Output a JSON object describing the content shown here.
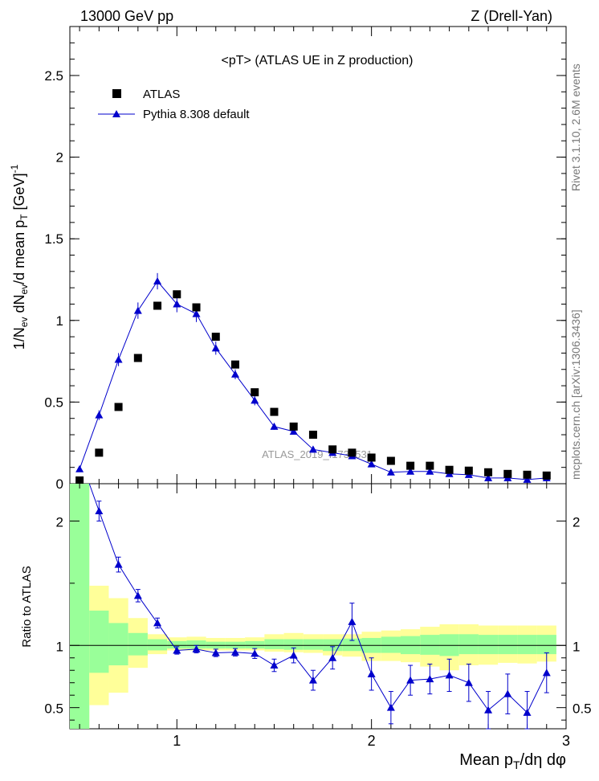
{
  "header": {
    "left": "13000 GeV pp",
    "right": "Z (Drell-Yan)"
  },
  "side_labels": {
    "rivet": "Rivet 3.1.10,  2.6M events",
    "mcplots": "mcplots.cern.ch [arXiv:1306.3436]"
  },
  "main_title": "<pT>  (ATLAS UE in Z production)",
  "watermark": "ATLAS_2019_I1736531",
  "legend": {
    "atlas": "ATLAS",
    "pythia": "Pythia 8.308 default"
  },
  "colors": {
    "mc": "#0000cc",
    "band_inner": "#99ff99",
    "band_outer": "#ffff99",
    "data": "#000000"
  },
  "chart_data": [
    {
      "type": "scatter",
      "title": "<pT>  (ATLAS UE in Z production)",
      "xlabel": "Mean p_T/dη dφ",
      "ylabel": "1/N_ev dN_ev/d mean p_T [GeV]^-1",
      "xlim": [
        0.45,
        3.0
      ],
      "ylim": [
        0,
        2.8
      ],
      "y_ticks": [
        "0",
        "0.5",
        "1",
        "1.5",
        "2",
        "2.5"
      ],
      "series": [
        {
          "name": "ATLAS",
          "x": [
            0.5,
            0.6,
            0.7,
            0.8,
            0.9,
            1.0,
            1.1,
            1.2,
            1.3,
            1.4,
            1.5,
            1.6,
            1.7,
            1.8,
            1.9,
            2.0,
            2.1,
            2.2,
            2.3,
            2.4,
            2.5,
            2.6,
            2.7,
            2.8,
            2.9
          ],
          "y": [
            0.02,
            0.19,
            0.47,
            0.77,
            1.09,
            1.16,
            1.08,
            0.9,
            0.73,
            0.56,
            0.44,
            0.35,
            0.3,
            0.21,
            0.19,
            0.16,
            0.14,
            0.11,
            0.11,
            0.085,
            0.08,
            0.07,
            0.06,
            0.055,
            0.05
          ]
        },
        {
          "name": "Pythia 8.308 default",
          "x": [
            0.5,
            0.6,
            0.7,
            0.8,
            0.9,
            1.0,
            1.1,
            1.2,
            1.3,
            1.4,
            1.5,
            1.6,
            1.7,
            1.8,
            1.9,
            2.0,
            2.1,
            2.2,
            2.3,
            2.4,
            2.5,
            2.6,
            2.7,
            2.8,
            2.9
          ],
          "y": [
            0.09,
            0.42,
            0.76,
            1.06,
            1.24,
            1.1,
            1.04,
            0.83,
            0.67,
            0.51,
            0.35,
            0.32,
            0.21,
            0.19,
            0.17,
            0.12,
            0.07,
            0.075,
            0.075,
            0.06,
            0.055,
            0.035,
            0.035,
            0.025,
            0.035
          ],
          "err": [
            0.01,
            0.03,
            0.04,
            0.05,
            0.05,
            0.05,
            0.05,
            0.04,
            0.03,
            0.03,
            0.02,
            0.02,
            0.02,
            0.02,
            0.02,
            0.01,
            0.01,
            0.01,
            0.01,
            0.01,
            0.01,
            0.005,
            0.005,
            0.005,
            0.005
          ]
        }
      ]
    },
    {
      "type": "line",
      "ylabel": "Ratio to ATLAS",
      "xlim": [
        0.45,
        3.0
      ],
      "ylim": [
        0.33,
        2.3
      ],
      "x_ticks": [
        "1",
        "2",
        "3"
      ],
      "y_ticks": [
        "0.5",
        "1",
        "2"
      ],
      "ratio_series": {
        "name": "Pythia 8.308 default",
        "x": [
          0.6,
          0.7,
          0.8,
          0.9,
          1.0,
          1.1,
          1.2,
          1.3,
          1.4,
          1.5,
          1.6,
          1.7,
          1.8,
          1.9,
          2.0,
          2.1,
          2.2,
          2.3,
          2.4,
          2.5,
          2.6,
          2.7,
          2.8,
          2.9
        ],
        "y": [
          2.08,
          1.65,
          1.4,
          1.18,
          0.96,
          0.97,
          0.94,
          0.945,
          0.935,
          0.84,
          0.92,
          0.72,
          0.9,
          1.19,
          0.77,
          0.5,
          0.72,
          0.73,
          0.76,
          0.7,
          0.48,
          0.61,
          0.46,
          0.78
        ],
        "err": [
          0.08,
          0.06,
          0.05,
          0.04,
          0.03,
          0.03,
          0.03,
          0.03,
          0.04,
          0.05,
          0.06,
          0.08,
          0.09,
          0.15,
          0.13,
          0.13,
          0.12,
          0.12,
          0.13,
          0.15,
          0.15,
          0.16,
          0.17,
          0.16
        ]
      },
      "bands": {
        "x_edges": [
          0.45,
          0.55,
          0.65,
          0.75,
          0.85,
          0.95,
          1.05,
          1.15,
          1.25,
          1.35,
          1.45,
          1.55,
          1.65,
          1.75,
          1.85,
          1.95,
          2.05,
          2.15,
          2.25,
          2.35,
          2.45,
          2.55,
          2.65,
          2.75,
          2.85,
          2.95
        ],
        "inner_lo": [
          0.3,
          0.78,
          0.84,
          0.92,
          0.96,
          0.975,
          0.975,
          0.975,
          0.975,
          0.975,
          0.97,
          0.965,
          0.965,
          0.955,
          0.955,
          0.94,
          0.94,
          0.93,
          0.925,
          0.915,
          0.93,
          0.93,
          0.93,
          0.93,
          0.93
        ],
        "inner_hi": [
          2.3,
          1.28,
          1.18,
          1.1,
          1.05,
          1.035,
          1.04,
          1.03,
          1.03,
          1.035,
          1.05,
          1.05,
          1.05,
          1.05,
          1.055,
          1.06,
          1.07,
          1.075,
          1.085,
          1.09,
          1.09,
          1.085,
          1.085,
          1.085,
          1.085
        ],
        "outer_lo": [
          0.3,
          0.52,
          0.62,
          0.82,
          0.93,
          0.96,
          0.96,
          0.96,
          0.96,
          0.96,
          0.95,
          0.945,
          0.94,
          0.92,
          0.91,
          0.875,
          0.875,
          0.865,
          0.83,
          0.8,
          0.84,
          0.845,
          0.86,
          0.855,
          0.87
        ],
        "outer_hi": [
          2.3,
          1.48,
          1.38,
          1.22,
          1.09,
          1.065,
          1.07,
          1.06,
          1.06,
          1.065,
          1.09,
          1.1,
          1.09,
          1.09,
          1.09,
          1.11,
          1.12,
          1.13,
          1.15,
          1.17,
          1.17,
          1.16,
          1.16,
          1.16,
          1.16
        ]
      }
    }
  ]
}
